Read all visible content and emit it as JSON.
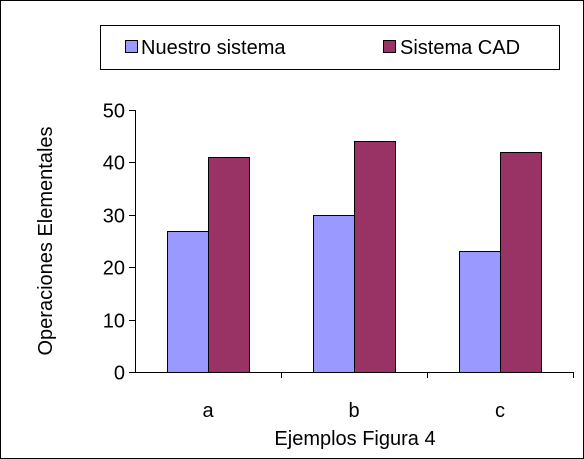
{
  "chart_data": {
    "type": "bar",
    "categories": [
      "a",
      "b",
      "c"
    ],
    "series": [
      {
        "name": "Nuestro sistema",
        "values": [
          27,
          30,
          23
        ],
        "color": "#9999FF"
      },
      {
        "name": "Sistema CAD",
        "values": [
          41,
          44,
          42
        ],
        "color": "#993366"
      }
    ],
    "title": "",
    "xlabel": "Ejemplos Figura 4",
    "ylabel": "Operaciones Elementales",
    "ylim": [
      0,
      50
    ],
    "yticks": [
      0,
      10,
      20,
      30,
      40,
      50
    ],
    "grid": false,
    "legend_position": "top"
  }
}
